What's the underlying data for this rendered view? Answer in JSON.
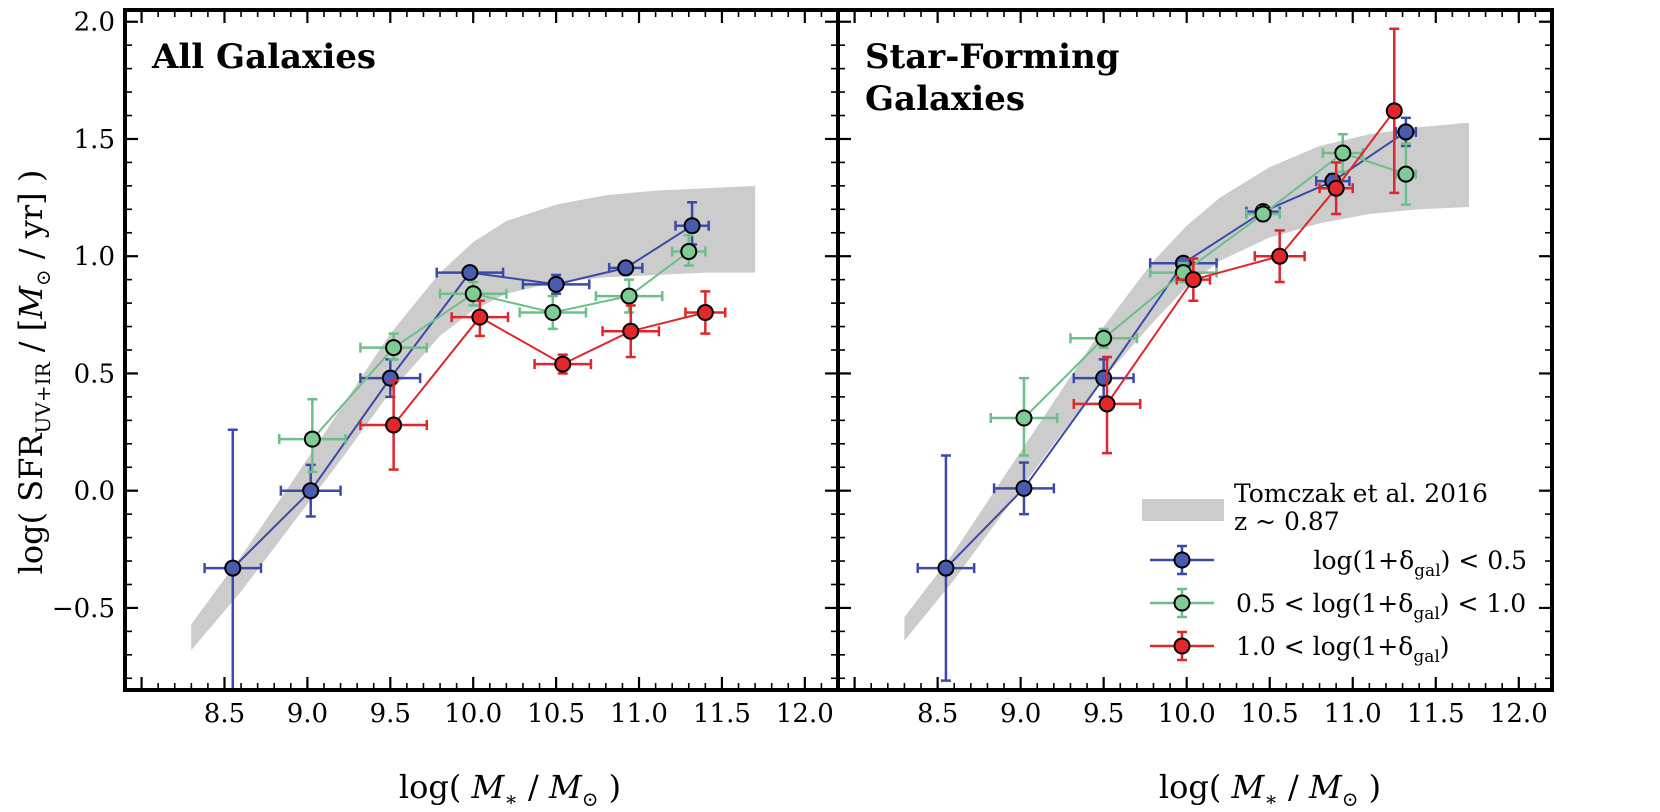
{
  "chart_data": {
    "type": "scatter",
    "xlabel": {
      "pre": "log( ",
      "m1": "M",
      "m1sub": "∗",
      "mid": " / ",
      "m2": "M",
      "m2sub": "⊙",
      "post": " )"
    },
    "ylabel": {
      "pre": "log( SFR",
      "sub": "UV+IR",
      "mid": " / [",
      "m": "M",
      "msub": "⊙",
      "post": " / yr] )"
    },
    "xlim": [
      7.9,
      12.2
    ],
    "ylim": [
      -0.85,
      2.05
    ],
    "xticks": [
      "8.5",
      "9.0",
      "9.5",
      "10.0",
      "10.5",
      "11.0",
      "11.5",
      "12.0"
    ],
    "yticks": [
      "−0.5",
      "0.0",
      "0.5",
      "1.0",
      "1.5",
      "2.0"
    ],
    "colors": {
      "low": "#3b4aa8",
      "low_fill": "#4a5cb0",
      "mid": "#6cbf8a",
      "mid_fill": "#7ccc94",
      "high": "#e0262a",
      "high_fill": "#e3282c",
      "band": "#cccccc"
    },
    "legend": {
      "band_line1": "Tomczak et al. 2016",
      "band_line2": "z ~ 0.87",
      "low": {
        "pre": "log(1+δ",
        "sub": "gal",
        "post": ") < 0.5"
      },
      "mid": {
        "pre": "0.5 < log(1+δ",
        "sub": "gal",
        "post": ") < 1.0"
      },
      "high": {
        "pre": "1.0 < log(1+δ",
        "sub": "gal",
        "post": ")"
      }
    },
    "panels": [
      {
        "title_lines": [
          "All Galaxies"
        ],
        "band": {
          "x": [
            8.3,
            8.6,
            8.9,
            9.2,
            9.5,
            9.8,
            10.0,
            10.2,
            10.5,
            10.8,
            11.1,
            11.4,
            11.7
          ],
          "lower": [
            -0.68,
            -0.43,
            -0.15,
            0.13,
            0.42,
            0.66,
            0.77,
            0.84,
            0.89,
            0.91,
            0.92,
            0.93,
            0.93
          ],
          "upper": [
            -0.57,
            -0.28,
            0.03,
            0.35,
            0.67,
            0.93,
            1.06,
            1.15,
            1.22,
            1.26,
            1.28,
            1.29,
            1.3
          ]
        },
        "series": [
          {
            "key": "low",
            "name": "log(1+δgal) < 0.5",
            "points": [
              {
                "x": 8.55,
                "y": -0.33,
                "xerr": 0.17,
                "yerr_low": 0.55,
                "yerr_high": 0.59
              },
              {
                "x": 9.02,
                "y": 0.0,
                "xerr": 0.18,
                "yerr_low": 0.11,
                "yerr_high": 0.11
              },
              {
                "x": 9.5,
                "y": 0.48,
                "xerr": 0.18,
                "yerr_low": 0.08,
                "yerr_high": 0.08
              },
              {
                "x": 9.98,
                "y": 0.93,
                "xerr": 0.2,
                "yerr_low": 0.02,
                "yerr_high": 0.02
              },
              {
                "x": 10.5,
                "y": 0.88,
                "xerr": 0.2,
                "yerr_low": 0.04,
                "yerr_high": 0.04
              },
              {
                "x": 10.92,
                "y": 0.95,
                "xerr": 0.1,
                "yerr_low": 0.02,
                "yerr_high": 0.02
              },
              {
                "x": 11.32,
                "y": 1.13,
                "xerr": 0.1,
                "yerr_low": 0.08,
                "yerr_high": 0.1
              }
            ]
          },
          {
            "key": "mid",
            "name": "0.5 < log(1+δgal) < 1.0",
            "points": [
              {
                "x": 9.03,
                "y": 0.22,
                "xerr": 0.2,
                "yerr_low": 0.14,
                "yerr_high": 0.17
              },
              {
                "x": 9.52,
                "y": 0.61,
                "xerr": 0.2,
                "yerr_low": 0.05,
                "yerr_high": 0.06
              },
              {
                "x": 10.0,
                "y": 0.84,
                "xerr": 0.2,
                "yerr_low": 0.05,
                "yerr_high": 0.05
              },
              {
                "x": 10.48,
                "y": 0.76,
                "xerr": 0.2,
                "yerr_low": 0.07,
                "yerr_high": 0.07
              },
              {
                "x": 10.94,
                "y": 0.83,
                "xerr": 0.2,
                "yerr_low": 0.07,
                "yerr_high": 0.07
              },
              {
                "x": 11.3,
                "y": 1.02,
                "xerr": 0.1,
                "yerr_low": 0.06,
                "yerr_high": 0.07
              }
            ]
          },
          {
            "key": "high",
            "name": "1.0 < log(1+δgal)",
            "points": [
              {
                "x": 9.52,
                "y": 0.28,
                "xerr": 0.2,
                "yerr_low": 0.19,
                "yerr_high": 0.19
              },
              {
                "x": 10.04,
                "y": 0.74,
                "xerr": 0.17,
                "yerr_low": 0.08,
                "yerr_high": 0.07
              },
              {
                "x": 10.54,
                "y": 0.54,
                "xerr": 0.17,
                "yerr_low": 0.04,
                "yerr_high": 0.04
              },
              {
                "x": 10.95,
                "y": 0.68,
                "xerr": 0.17,
                "yerr_low": 0.11,
                "yerr_high": 0.11
              },
              {
                "x": 11.4,
                "y": 0.76,
                "xerr": 0.12,
                "yerr_low": 0.09,
                "yerr_high": 0.09
              }
            ]
          }
        ]
      },
      {
        "title_lines": [
          "Star-Forming",
          "Galaxies"
        ],
        "band": {
          "x": [
            8.3,
            8.6,
            8.9,
            9.2,
            9.5,
            9.8,
            10.0,
            10.2,
            10.5,
            10.8,
            11.1,
            11.4,
            11.7
          ],
          "lower": [
            -0.64,
            -0.38,
            -0.09,
            0.2,
            0.48,
            0.72,
            0.87,
            0.98,
            1.08,
            1.14,
            1.18,
            1.2,
            1.21
          ],
          "upper": [
            -0.54,
            -0.26,
            0.06,
            0.38,
            0.7,
            0.98,
            1.13,
            1.25,
            1.38,
            1.47,
            1.52,
            1.55,
            1.57
          ]
        },
        "series": [
          {
            "key": "low",
            "name": "log(1+δgal) < 0.5",
            "points": [
              {
                "x": 8.55,
                "y": -0.33,
                "xerr": 0.17,
                "yerr_low": 0.48,
                "yerr_high": 0.48
              },
              {
                "x": 9.02,
                "y": 0.01,
                "xerr": 0.18,
                "yerr_low": 0.11,
                "yerr_high": 0.11
              },
              {
                "x": 9.5,
                "y": 0.48,
                "xerr": 0.18,
                "yerr_low": 0.08,
                "yerr_high": 0.08
              },
              {
                "x": 9.98,
                "y": 0.97,
                "xerr": 0.2,
                "yerr_low": 0.02,
                "yerr_high": 0.02
              },
              {
                "x": 10.46,
                "y": 1.19,
                "xerr": 0.1,
                "yerr_low": 0.02,
                "yerr_high": 0.02
              },
              {
                "x": 10.88,
                "y": 1.32,
                "xerr": 0.1,
                "yerr_low": 0.03,
                "yerr_high": 0.03
              },
              {
                "x": 11.32,
                "y": 1.53,
                "xerr": 0.06,
                "yerr_low": 0.06,
                "yerr_high": 0.06
              }
            ]
          },
          {
            "key": "mid",
            "name": "0.5 < log(1+δgal) < 1.0",
            "points": [
              {
                "x": 9.02,
                "y": 0.31,
                "xerr": 0.2,
                "yerr_low": 0.16,
                "yerr_high": 0.17
              },
              {
                "x": 9.5,
                "y": 0.65,
                "xerr": 0.2,
                "yerr_low": 0.04,
                "yerr_high": 0.04
              },
              {
                "x": 9.98,
                "y": 0.93,
                "xerr": 0.2,
                "yerr_low": 0.04,
                "yerr_high": 0.04
              },
              {
                "x": 10.46,
                "y": 1.18,
                "xerr": 0.1,
                "yerr_low": 0.03,
                "yerr_high": 0.03
              },
              {
                "x": 10.94,
                "y": 1.44,
                "xerr": 0.12,
                "yerr_low": 0.08,
                "yerr_high": 0.08
              },
              {
                "x": 11.32,
                "y": 1.35,
                "xerr": 0.06,
                "yerr_low": 0.13,
                "yerr_high": 0.13
              }
            ]
          },
          {
            "key": "high",
            "name": "1.0 < log(1+δgal)",
            "points": [
              {
                "x": 9.52,
                "y": 0.37,
                "xerr": 0.2,
                "yerr_low": 0.21,
                "yerr_high": 0.2
              },
              {
                "x": 10.04,
                "y": 0.9,
                "xerr": 0.1,
                "yerr_low": 0.09,
                "yerr_high": 0.09
              },
              {
                "x": 10.56,
                "y": 1.0,
                "xerr": 0.15,
                "yerr_low": 0.11,
                "yerr_high": 0.11
              },
              {
                "x": 10.9,
                "y": 1.29,
                "xerr": 0.1,
                "yerr_low": 0.11,
                "yerr_high": 0.11
              },
              {
                "x": 11.25,
                "y": 1.62,
                "xerr": 0.0,
                "yerr_low": 0.35,
                "yerr_high": 0.35
              }
            ]
          }
        ]
      }
    ]
  }
}
